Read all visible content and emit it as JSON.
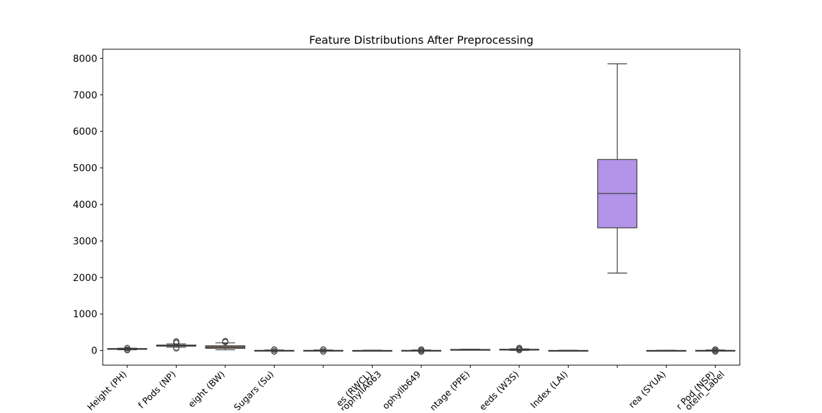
{
  "chart_data": {
    "type": "box",
    "title": "Feature Distributions After Preprocessing",
    "xlabel": "",
    "ylabel": "",
    "ylim": [
      -400,
      8250
    ],
    "yticks": [
      0,
      1000,
      2000,
      3000,
      4000,
      5000,
      6000,
      7000,
      8000
    ],
    "grid": false,
    "categories": [
      "Height (PH)",
      "f Pods (NP)",
      "eight (BW)",
      "Sugars (Su)",
      "",
      "es (RWCL)",
      "ophyllb649",
      "ntage (PPE)",
      "eeds (W3S)",
      "Index (LAI)",
      "",
      "rea (SYUA)",
      "r Pod (NSP)"
    ],
    "overlapping_labels": [
      {
        "text": "rophyllA663",
        "category_index": 5
      },
      {
        "text": "otein_Label",
        "category_index": 12
      }
    ],
    "boxes": [
      {
        "category": "Height (PH)",
        "q1": 35,
        "median": 45,
        "q3": 55,
        "whisker_low": 20,
        "whisker_high": 65,
        "outliers": [
          10,
          25,
          60,
          70
        ],
        "color": "#4c72b0"
      },
      {
        "category": "f Pods (NP)",
        "q1": 120,
        "median": 135,
        "q3": 150,
        "whisker_low": 90,
        "whisker_high": 180,
        "outliers": [
          60,
          80,
          200,
          230,
          250
        ],
        "color": "#dd8452"
      },
      {
        "category": "eight (BW)",
        "q1": 60,
        "median": 90,
        "q3": 130,
        "whisker_low": 20,
        "whisker_high": 210,
        "outliers": [
          230,
          250,
          260
        ],
        "color": "#937860"
      },
      {
        "category": "Sugars (Su)",
        "q1": -5,
        "median": 0,
        "q3": 5,
        "whisker_low": -15,
        "whisker_high": 15,
        "outliers": [
          -30,
          -20,
          20,
          30
        ],
        "color": "#8172b3"
      },
      {
        "category": "",
        "q1": -5,
        "median": 0,
        "q3": 5,
        "whisker_low": -15,
        "whisker_high": 15,
        "outliers": [
          -30,
          -20,
          20,
          30
        ],
        "color": "#c44e52"
      },
      {
        "category": "es (RWCL)",
        "q1": -3,
        "median": 0,
        "q3": 3,
        "whisker_low": -10,
        "whisker_high": 10,
        "outliers": [],
        "color": "#da8bc3"
      },
      {
        "category": "ophyllb649",
        "q1": -5,
        "median": 0,
        "q3": 5,
        "whisker_low": -15,
        "whisker_high": 15,
        "outliers": [
          -30,
          -15,
          15,
          30
        ],
        "color": "#55a868"
      },
      {
        "category": "ntage (PPE)",
        "q1": 20,
        "median": 25,
        "q3": 30,
        "whisker_low": 15,
        "whisker_high": 35,
        "outliers": [],
        "color": "#ccb974"
      },
      {
        "category": "eeds (W3S)",
        "q1": 15,
        "median": 25,
        "q3": 35,
        "whisker_low": 5,
        "whisker_high": 45,
        "outliers": [
          10,
          30,
          55,
          70
        ],
        "color": "#64b5cd"
      },
      {
        "category": "Index (LAI)",
        "q1": -3,
        "median": 0,
        "q3": 3,
        "whisker_low": -8,
        "whisker_high": 8,
        "outliers": [],
        "color": "#4c72b0"
      },
      {
        "category": "",
        "q1": 3360,
        "median": 4300,
        "q3": 5230,
        "whisker_low": 2120,
        "whisker_high": 7850,
        "outliers": [],
        "color": "#b294e8"
      },
      {
        "category": "rea (SYUA)",
        "q1": -3,
        "median": 0,
        "q3": 3,
        "whisker_low": -8,
        "whisker_high": 8,
        "outliers": [],
        "color": "#dd8452"
      },
      {
        "category": "r Pod (NSP)",
        "q1": -5,
        "median": 0,
        "q3": 5,
        "whisker_low": -15,
        "whisker_high": 15,
        "outliers": [
          -30,
          -15,
          15,
          30
        ],
        "color": "#55a868"
      }
    ]
  }
}
